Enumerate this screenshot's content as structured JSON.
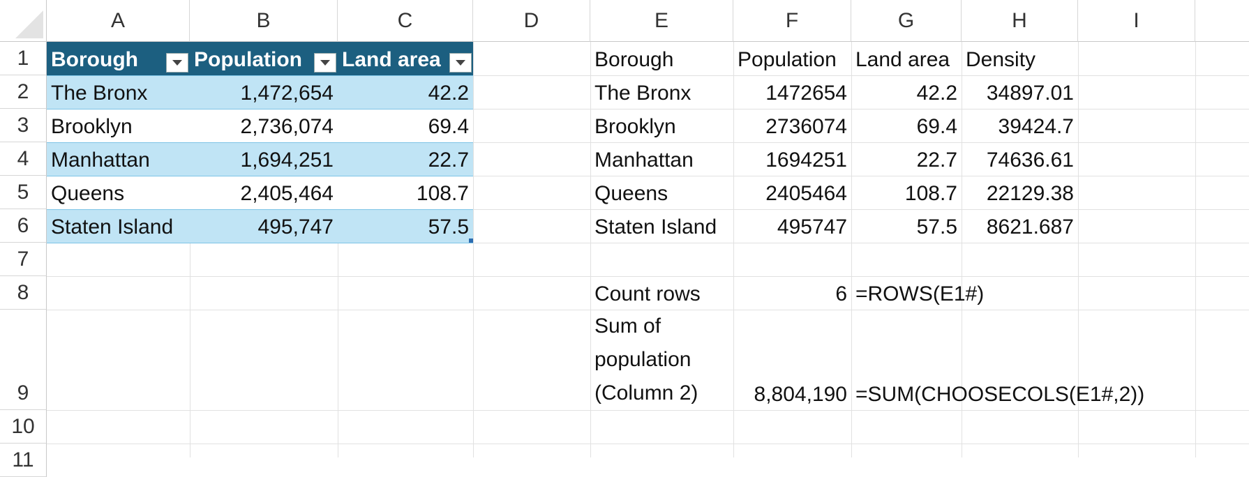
{
  "columns": [
    "A",
    "B",
    "C",
    "D",
    "E",
    "F",
    "G",
    "H",
    "I"
  ],
  "rows": [
    "1",
    "2",
    "3",
    "4",
    "5",
    "6",
    "7",
    "8",
    "9",
    "10",
    "11"
  ],
  "table": {
    "headers": [
      "Borough",
      "Population",
      "Land area"
    ],
    "rows": [
      [
        "The Bronx",
        "1,472,654",
        "42.2"
      ],
      [
        "Brooklyn",
        "2,736,074",
        "69.4"
      ],
      [
        "Manhattan",
        "1,694,251",
        "22.7"
      ],
      [
        "Queens",
        "2,405,464",
        "108.7"
      ],
      [
        "Staten Island",
        "495,747",
        "57.5"
      ]
    ],
    "header_color": "#1c5f80",
    "band_color": "#c0e4f5"
  },
  "spill": {
    "headers": [
      "Borough",
      "Population",
      "Land area",
      "Density"
    ],
    "rows": [
      [
        "The Bronx",
        "1472654",
        "42.2",
        "34897.01"
      ],
      [
        "Brooklyn",
        "2736074",
        "69.4",
        "39424.7"
      ],
      [
        "Manhattan",
        "1694251",
        "22.7",
        "74636.61"
      ],
      [
        "Queens",
        "2405464",
        "108.7",
        "22129.38"
      ],
      [
        "Staten Island",
        "495747",
        "57.5",
        "8621.687"
      ]
    ]
  },
  "summary": {
    "count_label": "Count rows",
    "count_value": "6",
    "count_formula": "=ROWS(E1#)",
    "sum_label_lines": [
      "Sum of",
      "population",
      "(Column 2)"
    ],
    "sum_value": "8,804,190",
    "sum_formula": "=SUM(CHOOSECOLS(E1#,2))"
  }
}
